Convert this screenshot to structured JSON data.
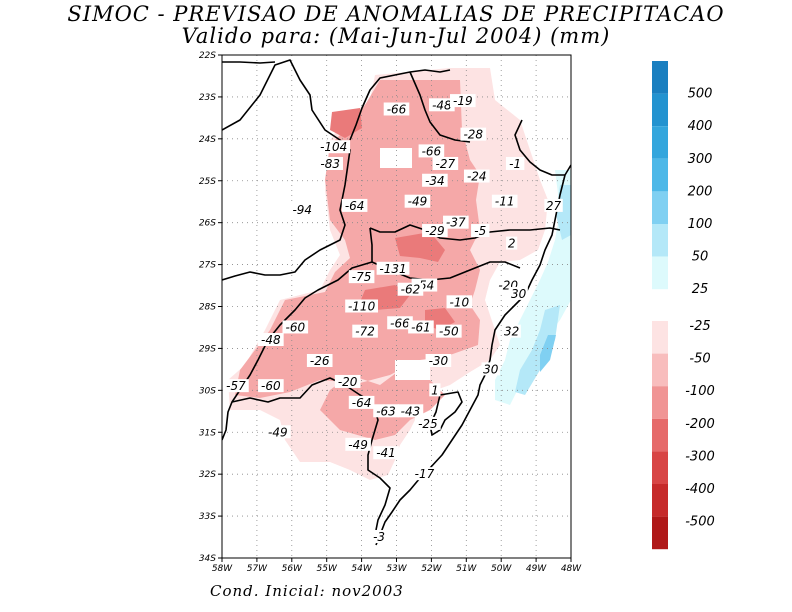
{
  "title": "SIMOC - PREVISAO DE ANOMALIAS DE PRECIPITACAO",
  "subtitle": "Valido para: (Mai-Jun-Jul 2004) (mm)",
  "footer": "Cond. Inicial: nov2003",
  "axes": {
    "lat_ticks": [
      "22S",
      "23S",
      "24S",
      "25S",
      "26S",
      "27S",
      "28S",
      "29S",
      "30S",
      "31S",
      "32S",
      "33S",
      "34S"
    ],
    "lon_ticks": [
      "58W",
      "57W",
      "56W",
      "55W",
      "54W",
      "53W",
      "52W",
      "51W",
      "50W",
      "49W",
      "48W"
    ]
  },
  "colorbar": {
    "positive": [
      {
        "label": "500",
        "color": "#1a7fc0"
      },
      {
        "label": "400",
        "color": "#2393d0"
      },
      {
        "label": "300",
        "color": "#33a6dd"
      },
      {
        "label": "200",
        "color": "#4db8e8"
      },
      {
        "label": "100",
        "color": "#80d0f2"
      },
      {
        "label": "50",
        "color": "#b4e8f8"
      },
      {
        "label": "25",
        "color": "#ddfafc"
      }
    ],
    "negative": [
      {
        "label": "-25",
        "color": "#fde3e3"
      },
      {
        "label": "-50",
        "color": "#f8bdbd"
      },
      {
        "label": "-100",
        "color": "#f09494"
      },
      {
        "label": "-200",
        "color": "#e66a6a"
      },
      {
        "label": "-300",
        "color": "#d84545"
      },
      {
        "label": "-400",
        "color": "#c62a2a"
      },
      {
        "label": "-500",
        "color": "#b01818"
      }
    ]
  },
  "map_labels": [
    {
      "text": "-66",
      "lon": -53.0,
      "lat": -23.3
    },
    {
      "text": "-48",
      "lon": -51.7,
      "lat": -23.2
    },
    {
      "text": "-19",
      "lon": -51.1,
      "lat": -23.1
    },
    {
      "text": "-28",
      "lon": -50.8,
      "lat": -23.9
    },
    {
      "text": "-104",
      "lon": -54.8,
      "lat": -24.2
    },
    {
      "text": "-66",
      "lon": -52.0,
      "lat": -24.3
    },
    {
      "text": "-83",
      "lon": -54.9,
      "lat": -24.6
    },
    {
      "text": "-27",
      "lon": -51.6,
      "lat": -24.6
    },
    {
      "text": "-1",
      "lon": -49.6,
      "lat": -24.6
    },
    {
      "text": "-24",
      "lon": -50.7,
      "lat": -24.9
    },
    {
      "text": "-34",
      "lon": -51.9,
      "lat": -25.0
    },
    {
      "text": "-49",
      "lon": -52.4,
      "lat": -25.5
    },
    {
      "text": "-11",
      "lon": -49.9,
      "lat": -25.5
    },
    {
      "text": "27",
      "lon": -48.5,
      "lat": -25.6
    },
    {
      "text": "-94",
      "lon": -55.7,
      "lat": -25.7
    },
    {
      "text": "-64",
      "lon": -54.2,
      "lat": -25.6
    },
    {
      "text": "-37",
      "lon": -51.3,
      "lat": -26.0
    },
    {
      "text": "-29",
      "lon": -51.9,
      "lat": -26.2
    },
    {
      "text": "-5",
      "lon": -50.6,
      "lat": -26.2
    },
    {
      "text": "2",
      "lon": -49.7,
      "lat": -26.5
    },
    {
      "text": "-131",
      "lon": -53.1,
      "lat": -27.1
    },
    {
      "text": "-75",
      "lon": -54.0,
      "lat": -27.3
    },
    {
      "text": "-54",
      "lon": -52.2,
      "lat": -27.5
    },
    {
      "text": "-62",
      "lon": -52.6,
      "lat": -27.6
    },
    {
      "text": "-20",
      "lon": -49.8,
      "lat": -27.5
    },
    {
      "text": "30",
      "lon": -49.5,
      "lat": -27.7
    },
    {
      "text": "-10",
      "lon": -51.2,
      "lat": -27.9
    },
    {
      "text": "-110",
      "lon": -54.0,
      "lat": -28.0
    },
    {
      "text": "-60",
      "lon": -55.9,
      "lat": -28.5
    },
    {
      "text": "-72",
      "lon": -53.9,
      "lat": -28.6
    },
    {
      "text": "-66",
      "lon": -52.9,
      "lat": -28.4
    },
    {
      "text": "-61",
      "lon": -52.3,
      "lat": -28.5
    },
    {
      "text": "-50",
      "lon": -51.5,
      "lat": -28.6
    },
    {
      "text": "32",
      "lon": -49.7,
      "lat": -28.6
    },
    {
      "text": "-48",
      "lon": -56.6,
      "lat": -28.8
    },
    {
      "text": "-26",
      "lon": -55.2,
      "lat": -29.3
    },
    {
      "text": "-30",
      "lon": -51.8,
      "lat": -29.3
    },
    {
      "text": "30",
      "lon": -50.3,
      "lat": -29.5
    },
    {
      "text": "-20",
      "lon": -54.4,
      "lat": -29.8
    },
    {
      "text": "-57",
      "lon": -57.6,
      "lat": -29.9
    },
    {
      "text": "-60",
      "lon": -56.6,
      "lat": -29.9
    },
    {
      "text": "1",
      "lon": -51.9,
      "lat": -30.0
    },
    {
      "text": "-64",
      "lon": -54.0,
      "lat": -30.3
    },
    {
      "text": "-63",
      "lon": -53.3,
      "lat": -30.5
    },
    {
      "text": "-43",
      "lon": -52.6,
      "lat": -30.5
    },
    {
      "text": "-25",
      "lon": -52.1,
      "lat": -30.8
    },
    {
      "text": "-49",
      "lon": -56.4,
      "lat": -31.0
    },
    {
      "text": "-49",
      "lon": -54.1,
      "lat": -31.3
    },
    {
      "text": "-41",
      "lon": -53.3,
      "lat": -31.5
    },
    {
      "text": "-17",
      "lon": -52.2,
      "lat": -32.0
    },
    {
      "text": "-3",
      "lon": -53.5,
      "lat": -33.5
    }
  ]
}
